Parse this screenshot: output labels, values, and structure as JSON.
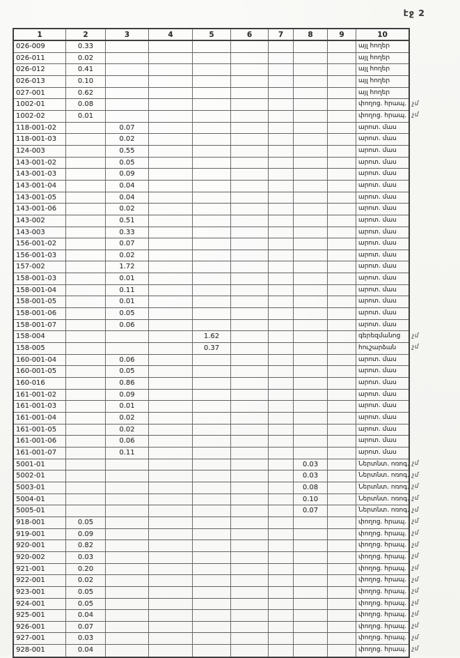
{
  "page": {
    "label": "էջ 2"
  },
  "table": {
    "headers": [
      "1",
      "2",
      "3",
      "4",
      "5",
      "6",
      "7",
      "8",
      "9",
      "10"
    ],
    "rows": [
      {
        "cells": [
          "026-009",
          "0.33",
          "",
          "",
          "",
          "",
          "",
          "",
          "",
          "այլ հողեր"
        ],
        "note": ""
      },
      {
        "cells": [
          "026-011",
          "0.02",
          "",
          "",
          "",
          "",
          "",
          "",
          "",
          "այլ հողեր"
        ],
        "note": ""
      },
      {
        "cells": [
          "026-012",
          "0.41",
          "",
          "",
          "",
          "",
          "",
          "",
          "",
          "այլ հողեր"
        ],
        "note": ""
      },
      {
        "cells": [
          "026-013",
          "0.10",
          "",
          "",
          "",
          "",
          "",
          "",
          "",
          "այլ հողեր"
        ],
        "note": ""
      },
      {
        "cells": [
          "027-001",
          "0.62",
          "",
          "",
          "",
          "",
          "",
          "",
          "",
          "այլ հողեր"
        ],
        "note": ""
      },
      {
        "cells": [
          "1002-01",
          "0.08",
          "",
          "",
          "",
          "",
          "",
          "",
          "",
          "փողոց. հրապ."
        ],
        "note": "չմ"
      },
      {
        "cells": [
          "1002-02",
          "0.01",
          "",
          "",
          "",
          "",
          "",
          "",
          "",
          "փողոց. հրապ."
        ],
        "note": "չմ"
      },
      {
        "cells": [
          "118-001-02",
          "",
          "0.07",
          "",
          "",
          "",
          "",
          "",
          "",
          "արոտ. մաս"
        ],
        "note": ""
      },
      {
        "cells": [
          "118-001-03",
          "",
          "0.02",
          "",
          "",
          "",
          "",
          "",
          "",
          "արոտ. մաս"
        ],
        "note": ""
      },
      {
        "cells": [
          "124-003",
          "",
          "0.55",
          "",
          "",
          "",
          "",
          "",
          "",
          "արոտ. մաս"
        ],
        "note": ""
      },
      {
        "cells": [
          "143-001-02",
          "",
          "0.05",
          "",
          "",
          "",
          "",
          "",
          "",
          "արոտ. մաս"
        ],
        "note": ""
      },
      {
        "cells": [
          "143-001-03",
          "",
          "0.09",
          "",
          "",
          "",
          "",
          "",
          "",
          "արոտ. մաս"
        ],
        "note": ""
      },
      {
        "cells": [
          "143-001-04",
          "",
          "0.04",
          "",
          "",
          "",
          "",
          "",
          "",
          "արոտ. մաս"
        ],
        "note": ""
      },
      {
        "cells": [
          "143-001-05",
          "",
          "0.04",
          "",
          "",
          "",
          "",
          "",
          "",
          "արոտ. մաս"
        ],
        "note": ""
      },
      {
        "cells": [
          "143-001-06",
          "",
          "0.02",
          "",
          "",
          "",
          "",
          "",
          "",
          "արոտ. մաս"
        ],
        "note": ""
      },
      {
        "cells": [
          "143-002",
          "",
          "0.51",
          "",
          "",
          "",
          "",
          "",
          "",
          "արոտ. մաս"
        ],
        "note": ""
      },
      {
        "cells": [
          "143-003",
          "",
          "0.33",
          "",
          "",
          "",
          "",
          "",
          "",
          "արոտ. մաս"
        ],
        "note": ""
      },
      {
        "cells": [
          "156-001-02",
          "",
          "0.07",
          "",
          "",
          "",
          "",
          "",
          "",
          "արոտ. մաս"
        ],
        "note": ""
      },
      {
        "cells": [
          "156-001-03",
          "",
          "0.02",
          "",
          "",
          "",
          "",
          "",
          "",
          "արոտ. մաս"
        ],
        "note": ""
      },
      {
        "cells": [
          "157-002",
          "",
          "1.72",
          "",
          "",
          "",
          "",
          "",
          "",
          "արոտ. մաս"
        ],
        "note": ""
      },
      {
        "cells": [
          "158-001-03",
          "",
          "0.01",
          "",
          "",
          "",
          "",
          "",
          "",
          "արոտ. մաս"
        ],
        "note": ""
      },
      {
        "cells": [
          "158-001-04",
          "",
          "0.11",
          "",
          "",
          "",
          "",
          "",
          "",
          "արոտ. մաս"
        ],
        "note": ""
      },
      {
        "cells": [
          "158-001-05",
          "",
          "0.01",
          "",
          "",
          "",
          "",
          "",
          "",
          "արոտ. մաս"
        ],
        "note": ""
      },
      {
        "cells": [
          "158-001-06",
          "",
          "0.05",
          "",
          "",
          "",
          "",
          "",
          "",
          "արոտ. մաս"
        ],
        "note": ""
      },
      {
        "cells": [
          "158-001-07",
          "",
          "0.06",
          "",
          "",
          "",
          "",
          "",
          "",
          "արոտ. մաս"
        ],
        "note": ""
      },
      {
        "cells": [
          "158-004",
          "",
          "",
          "",
          "1.62",
          "",
          "",
          "",
          "",
          "գերեզմանոց"
        ],
        "note": "չմ"
      },
      {
        "cells": [
          "158-005",
          "",
          "",
          "",
          "0.37",
          "",
          "",
          "",
          "",
          "հուշարձան"
        ],
        "note": "չմ"
      },
      {
        "cells": [
          "160-001-04",
          "",
          "0.06",
          "",
          "",
          "",
          "",
          "",
          "",
          "արոտ. մաս"
        ],
        "note": ""
      },
      {
        "cells": [
          "160-001-05",
          "",
          "0.05",
          "",
          "",
          "",
          "",
          "",
          "",
          "արոտ. մաս"
        ],
        "note": ""
      },
      {
        "cells": [
          "160-016",
          "",
          "0.86",
          "",
          "",
          "",
          "",
          "",
          "",
          "արոտ. մաս"
        ],
        "note": ""
      },
      {
        "cells": [
          "161-001-02",
          "",
          "0.09",
          "",
          "",
          "",
          "",
          "",
          "",
          "արոտ. մաս"
        ],
        "note": ""
      },
      {
        "cells": [
          "161-001-03",
          "",
          "0.01",
          "",
          "",
          "",
          "",
          "",
          "",
          "արոտ. մաս"
        ],
        "note": ""
      },
      {
        "cells": [
          "161-001-04",
          "",
          "0.02",
          "",
          "",
          "",
          "",
          "",
          "",
          "արոտ. մաս"
        ],
        "note": ""
      },
      {
        "cells": [
          "161-001-05",
          "",
          "0.02",
          "",
          "",
          "",
          "",
          "",
          "",
          "արոտ. մաս"
        ],
        "note": ""
      },
      {
        "cells": [
          "161-001-06",
          "",
          "0.06",
          "",
          "",
          "",
          "",
          "",
          "",
          "արոտ. մաս"
        ],
        "note": ""
      },
      {
        "cells": [
          "161-001-07",
          "",
          "0.11",
          "",
          "",
          "",
          "",
          "",
          "",
          "արոտ. մաս"
        ],
        "note": ""
      },
      {
        "cells": [
          "5001-01",
          "",
          "",
          "",
          "",
          "",
          "",
          "0.03",
          "",
          "Ներտնտ. ոռոգ. ցանց"
        ],
        "note": "չմ"
      },
      {
        "cells": [
          "5002-01",
          "",
          "",
          "",
          "",
          "",
          "",
          "0.03",
          "",
          "Ներտնտ. ոռոգ. ցանց"
        ],
        "note": "չմ"
      },
      {
        "cells": [
          "5003-01",
          "",
          "",
          "",
          "",
          "",
          "",
          "0.08",
          "",
          "Ներտնտ. ոռոգ. ցանց"
        ],
        "note": "չմ"
      },
      {
        "cells": [
          "5004-01",
          "",
          "",
          "",
          "",
          "",
          "",
          "0.10",
          "",
          "Ներտնտ. ոռոգ. ցանց"
        ],
        "note": "չմ"
      },
      {
        "cells": [
          "5005-01",
          "",
          "",
          "",
          "",
          "",
          "",
          "0.07",
          "",
          "Ներտնտ. ոռոգ. ցանց"
        ],
        "note": "չմ"
      },
      {
        "cells": [
          "918-001",
          "0.05",
          "",
          "",
          "",
          "",
          "",
          "",
          "",
          "փողոց. հրապ."
        ],
        "note": "չմ"
      },
      {
        "cells": [
          "919-001",
          "0.09",
          "",
          "",
          "",
          "",
          "",
          "",
          "",
          "փողոց. հրապ."
        ],
        "note": "չմ"
      },
      {
        "cells": [
          "920-001",
          "0.82",
          "",
          "",
          "",
          "",
          "",
          "",
          "",
          "փողոց. հրապ."
        ],
        "note": "չմ"
      },
      {
        "cells": [
          "920-002",
          "0.03",
          "",
          "",
          "",
          "",
          "",
          "",
          "",
          "փողոց. հրապ."
        ],
        "note": "չմ"
      },
      {
        "cells": [
          "921-001",
          "0.20",
          "",
          "",
          "",
          "",
          "",
          "",
          "",
          "փողոց. հրապ."
        ],
        "note": "չմ"
      },
      {
        "cells": [
          "922-001",
          "0.02",
          "",
          "",
          "",
          "",
          "",
          "",
          "",
          "փողոց. հրապ."
        ],
        "note": "չմ"
      },
      {
        "cells": [
          "923-001",
          "0.05",
          "",
          "",
          "",
          "",
          "",
          "",
          "",
          "փողոց. հրապ."
        ],
        "note": "չմ"
      },
      {
        "cells": [
          "924-001",
          "0.05",
          "",
          "",
          "",
          "",
          "",
          "",
          "",
          "փողոց. հրապ."
        ],
        "note": "չմ"
      },
      {
        "cells": [
          "925-001",
          "0.04",
          "",
          "",
          "",
          "",
          "",
          "",
          "",
          "փողոց. հրապ."
        ],
        "note": "չմ"
      },
      {
        "cells": [
          "926-001",
          "0.07",
          "",
          "",
          "",
          "",
          "",
          "",
          "",
          "փողոց. հրապ."
        ],
        "note": "չմ"
      },
      {
        "cells": [
          "927-001",
          "0.03",
          "",
          "",
          "",
          "",
          "",
          "",
          "",
          "փողոց. հրապ."
        ],
        "note": "չմ"
      },
      {
        "cells": [
          "928-001",
          "0.04",
          "",
          "",
          "",
          "",
          "",
          "",
          "",
          "փողոց. հրապ."
        ],
        "note": "չմ"
      }
    ]
  }
}
